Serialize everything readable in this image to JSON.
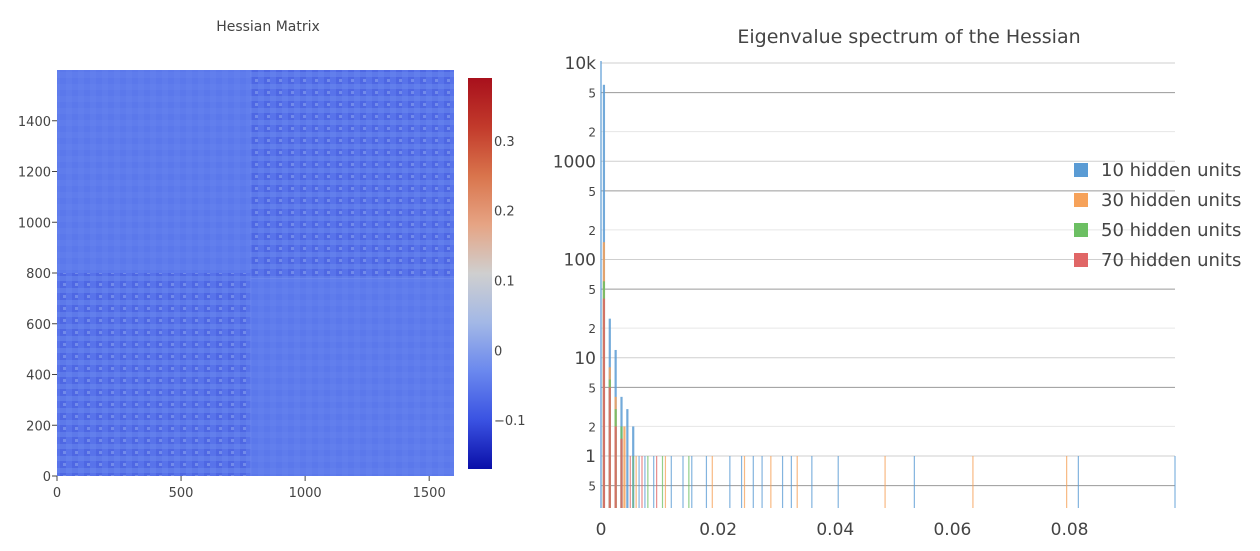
{
  "chart_data": [
    {
      "type": "heatmap",
      "title": "Hessian Matrix",
      "xlabel": "",
      "ylabel": "",
      "xlim": [
        0,
        1600
      ],
      "ylim": [
        0,
        1600
      ],
      "xticks": [
        "0",
        "500",
        "1000",
        "1500"
      ],
      "yticks": [
        "0",
        "200",
        "400",
        "600",
        "800",
        "1000",
        "1200",
        "1400"
      ],
      "blocks": [
        {
          "x": [
            0,
            780
          ],
          "y": [
            800,
            1600
          ],
          "pattern": "faint"
        },
        {
          "x": [
            780,
            1600
          ],
          "y": [
            780,
            1600
          ],
          "pattern": "strong"
        },
        {
          "x": [
            0,
            780
          ],
          "y": [
            0,
            800
          ],
          "pattern": "strong"
        },
        {
          "x": [
            780,
            1600
          ],
          "y": [
            0,
            780
          ],
          "pattern": "faint"
        }
      ],
      "colorbar": {
        "range": [
          -0.17,
          0.39
        ],
        "ticks": [
          "−0.1",
          "0",
          "0.1",
          "0.2",
          "0.3"
        ],
        "colors": [
          "#0a0fa8",
          "#3a52e2",
          "#6a88ee",
          "#a3b8e6",
          "#cfcfcf",
          "#e6a484",
          "#d9744c",
          "#c23a2b",
          "#a8101c"
        ]
      }
    },
    {
      "type": "bar",
      "title": "Eigenvalue spectrum of the Hessian",
      "xlabel": "",
      "ylabel": "",
      "xlim": [
        0,
        0.098
      ],
      "yscale": "log",
      "xticks": [
        "0",
        "0.02",
        "0.04",
        "0.06",
        "0.08"
      ],
      "ytick_major": [
        "1",
        "10",
        "100",
        "1000",
        "10k"
      ],
      "ytick_minor": [
        "2",
        "5"
      ],
      "legend_position": "right",
      "series": [
        {
          "name": "10 hidden units",
          "color": "#5a9bd4",
          "x": [
            0.0005,
            0.0015,
            0.0025,
            0.0035,
            0.0045,
            0.0055,
            0.0065,
            0.0075,
            0.009,
            0.012,
            0.014,
            0.0155,
            0.018,
            0.022,
            0.024,
            0.026,
            0.0275,
            0.031,
            0.0325,
            0.036,
            0.0405,
            0.0535,
            0.0815,
            0.098
          ],
          "values": [
            6000,
            25,
            12,
            4,
            3,
            2,
            1,
            1,
            1,
            1,
            1,
            1,
            1,
            1,
            1,
            1,
            1,
            1,
            1,
            1,
            1,
            1,
            1,
            1
          ]
        },
        {
          "name": "30 hidden units",
          "color": "#f6a25a",
          "x": [
            0.0005,
            0.0015,
            0.0025,
            0.004,
            0.006,
            0.011,
            0.019,
            0.0245,
            0.029,
            0.0335,
            0.0485,
            0.0635,
            0.0795
          ],
          "values": [
            150,
            8,
            4,
            2,
            1,
            1,
            1,
            1,
            1,
            1,
            1,
            1,
            1
          ]
        },
        {
          "name": "50 hidden units",
          "color": "#6cbf63",
          "x": [
            0.0005,
            0.0015,
            0.0025,
            0.0035,
            0.0055,
            0.008,
            0.0105,
            0.015
          ],
          "values": [
            60,
            6,
            3,
            2,
            1,
            1,
            1,
            1
          ]
        },
        {
          "name": "70 hidden units",
          "color": "#e06666",
          "x": [
            0.0005,
            0.0015,
            0.0025,
            0.0035,
            0.005,
            0.007,
            0.0095
          ],
          "values": [
            40,
            5,
            2,
            1.5,
            1,
            1,
            1
          ]
        }
      ]
    }
  ]
}
